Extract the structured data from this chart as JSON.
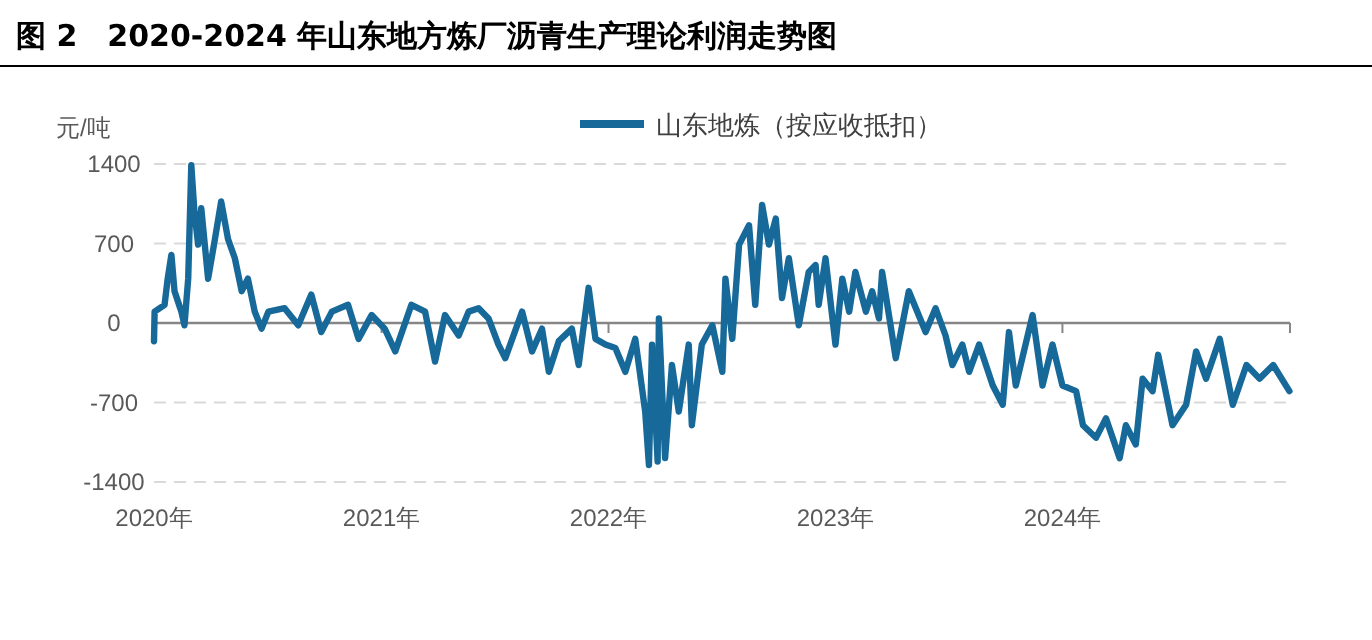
{
  "chart_data": {
    "type": "line",
    "title": "图 2　2020-2024 年山东地方炼厂沥青生产理论利润走势图",
    "ylabel": "元/吨",
    "x": [
      "2020-01-01",
      "2020-01-02",
      "2020-01-18",
      "2020-01-23",
      "2020-01-29",
      "2020-02-03",
      "2020-02-14",
      "2020-02-19",
      "2020-02-25",
      "2020-03-01",
      "2020-03-06",
      "2020-03-12",
      "2020-03-17",
      "2020-03-28",
      "2020-04-08",
      "2020-04-18",
      "2020-04-29",
      "2020-05-10",
      "2020-05-21",
      "2020-05-31",
      "2020-06-11",
      "2020-06-22",
      "2020-07-03",
      "2020-07-29",
      "2020-08-20",
      "2020-09-10",
      "2020-09-26",
      "2020-10-13",
      "2020-11-08",
      "2020-11-25",
      "2020-12-16",
      "2021-01-06",
      "2021-01-23",
      "2021-02-18",
      "2021-03-12",
      "2021-03-28",
      "2021-04-13",
      "2021-05-05",
      "2021-05-21",
      "2021-06-06",
      "2021-06-22",
      "2021-07-08",
      "2021-07-19",
      "2021-08-15",
      "2021-08-31",
      "2021-09-16",
      "2021-09-27",
      "2021-10-13",
      "2021-11-03",
      "2021-11-14",
      "2021-11-30",
      "2021-12-11",
      "2021-12-27",
      "2022-01-12",
      "2022-01-28",
      "2022-02-13",
      "2022-03-01",
      "2022-03-07",
      "2022-03-12",
      "2022-03-21",
      "2022-03-23",
      "2022-04-02",
      "2022-04-13",
      "2022-04-24",
      "2022-05-10",
      "2022-05-15",
      "2022-05-31",
      "2022-06-17",
      "2022-07-03",
      "2022-07-08",
      "2022-07-19",
      "2022-07-30",
      "2022-08-15",
      "2022-08-25",
      "2022-09-05",
      "2022-09-16",
      "2022-09-27",
      "2022-10-07",
      "2022-10-18",
      "2022-11-03",
      "2022-11-19",
      "2022-11-30",
      "2022-12-05",
      "2022-12-16",
      "2023-01-01",
      "2023-01-12",
      "2023-01-23",
      "2023-02-02",
      "2023-02-19",
      "2023-03-01",
      "2023-03-12",
      "2023-03-17",
      "2023-04-08",
      "2023-04-29",
      "2023-05-26",
      "2023-06-11",
      "2023-06-27",
      "2023-07-08",
      "2023-07-24",
      "2023-08-04",
      "2023-08-20",
      "2023-09-11",
      "2023-09-27",
      "2023-10-07",
      "2023-10-18",
      "2023-11-14",
      "2023-11-30",
      "2023-12-16",
      "2024-01-01",
      "2024-01-23",
      "2024-02-03",
      "2024-02-24",
      "2024-03-11",
      "2024-04-02",
      "2024-04-12",
      "2024-04-28",
      "2024-05-09",
      "2024-05-25",
      "2024-06-03",
      "2024-06-26",
      "2024-07-18",
      "2024-08-03",
      "2024-08-19",
      "2024-09-10",
      "2024-10-01",
      "2024-10-23",
      "2024-11-13",
      "2024-12-05",
      "2024-12-31"
    ],
    "series": [
      {
        "name": "山东地炼（按应收抵扣）",
        "color": "#17699a",
        "values": [
          -160,
          100,
          160,
          390,
          600,
          280,
          100,
          -20,
          390,
          1390,
          980,
          690,
          1010,
          390,
          740,
          1070,
          740,
          570,
          280,
          390,
          100,
          -50,
          100,
          130,
          -20,
          250,
          -80,
          100,
          160,
          -140,
          70,
          -50,
          -250,
          160,
          100,
          -340,
          70,
          -110,
          100,
          130,
          40,
          -190,
          -310,
          100,
          -250,
          -50,
          -430,
          -160,
          -50,
          -370,
          310,
          -140,
          -190,
          -220,
          -430,
          -140,
          -780,
          -1250,
          -190,
          -1220,
          40,
          -1190,
          -370,
          -780,
          -190,
          -900,
          -190,
          -20,
          -430,
          390,
          -140,
          690,
          860,
          160,
          1040,
          690,
          920,
          220,
          570,
          -20,
          450,
          510,
          160,
          570,
          -190,
          390,
          100,
          450,
          100,
          280,
          40,
          450,
          -310,
          280,
          -80,
          130,
          -110,
          -370,
          -190,
          -430,
          -190,
          -550,
          -720,
          -80,
          -550,
          70,
          -550,
          -190,
          -550,
          -600,
          -900,
          -1010,
          -840,
          -1190,
          -900,
          -1070,
          -490,
          -600,
          -280,
          -900,
          -720,
          -250,
          -490,
          -140,
          -720,
          -370,
          -490,
          -370,
          -600
        ]
      }
    ],
    "xlim": [
      "2020-01-01",
      "2025-01-01"
    ],
    "xticks": [
      {
        "value": "2020-01-01",
        "label": "2020年"
      },
      {
        "value": "2021-01-01",
        "label": "2021年"
      },
      {
        "value": "2022-01-01",
        "label": "2022年"
      },
      {
        "value": "2023-01-01",
        "label": "2023年"
      },
      {
        "value": "2024-01-01",
        "label": "2024年"
      },
      {
        "value": "2025-01-01",
        "label": null
      }
    ],
    "ylim": [
      -1400,
      1400
    ],
    "yticks": [
      -1400,
      -700,
      0,
      700,
      1400
    ],
    "grid": "y",
    "legend": "top",
    "line_style": "solid",
    "marker": "none"
  }
}
